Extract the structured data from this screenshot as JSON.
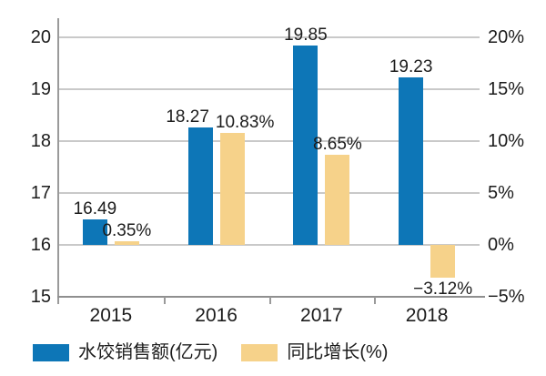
{
  "chart_data": {
    "type": "bar",
    "title": "",
    "categories": [
      "2015",
      "2016",
      "2017",
      "2018"
    ],
    "series": [
      {
        "name": "水饺销售额(亿元)",
        "axis": "left",
        "color": "#0d76b7",
        "values": [
          16.49,
          18.27,
          19.85,
          19.23
        ],
        "labels": [
          "16.49",
          "18.27",
          "19.85",
          "19.23"
        ]
      },
      {
        "name": "同比增长(%)",
        "axis": "right",
        "color": "#f6d28a",
        "values": [
          0.35,
          10.83,
          8.65,
          -3.12
        ],
        "labels": [
          "0.35%",
          "10.83%",
          "8.65%",
          "−3.12%"
        ]
      }
    ],
    "left_axis": {
      "min": 15,
      "max": 20,
      "tick_step": 1,
      "tick_labels": [
        "20",
        "19",
        "18",
        "17",
        "16",
        "15"
      ]
    },
    "right_axis": {
      "min": -5,
      "max": 20,
      "tick_step": 5,
      "tick_labels": [
        "20%",
        "15%",
        "10%",
        "5%",
        "0%",
        "−5%"
      ]
    },
    "bar_baseline": {
      "left_value": 16,
      "right_value": 0
    },
    "grid": true,
    "legend_position": "bottom",
    "colors": {
      "gridline": "#c9c9c9",
      "axis": "#9a9a9a",
      "text": "#1c1c1c",
      "background": "#ffffff"
    }
  }
}
